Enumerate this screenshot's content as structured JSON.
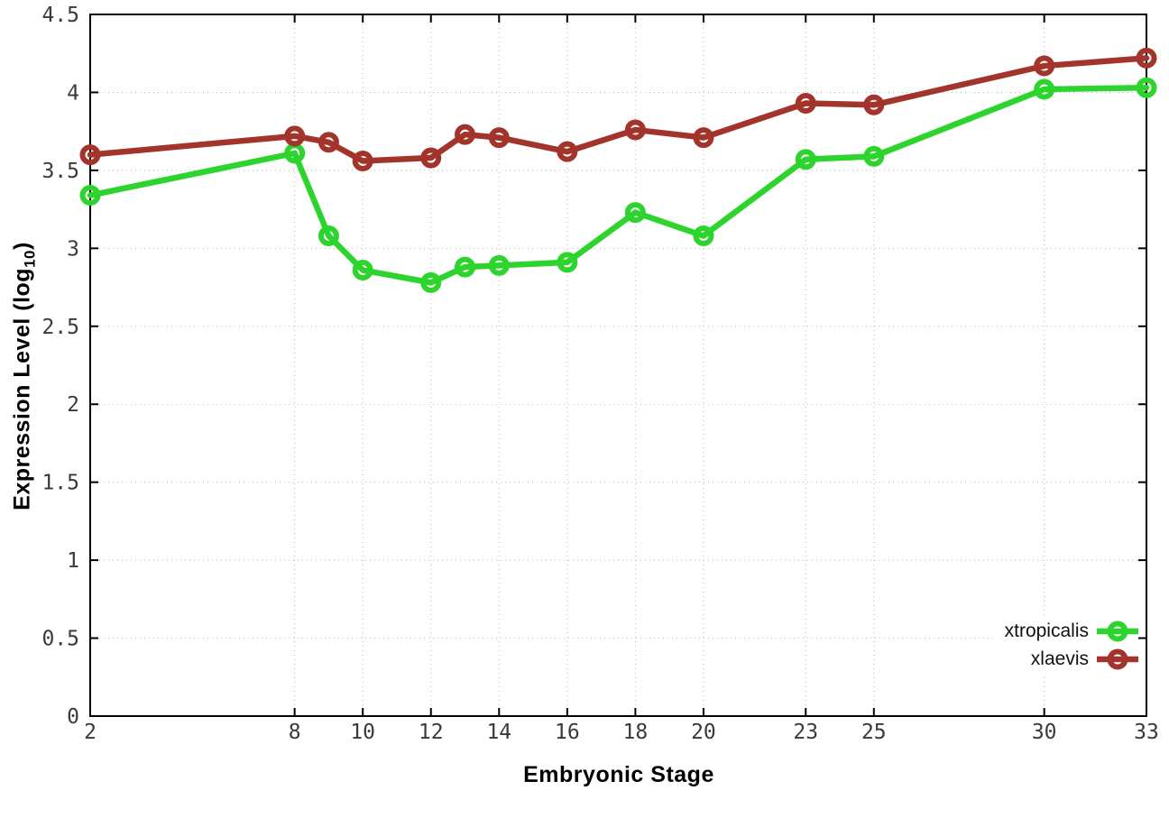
{
  "figure": {
    "background": "#ffffff"
  },
  "chart_data": {
    "type": "line",
    "title": "",
    "xlabel": "Embryonic Stage",
    "ylabel": "Expression Level (log10)",
    "ylabel_parts": {
      "main": "Expression Level (log",
      "sub": "10",
      "close": ")"
    },
    "xlim": [
      2,
      33
    ],
    "ylim": [
      0,
      4.5
    ],
    "grid": true,
    "legend_position": "bottom-right",
    "x": [
      2,
      8,
      9,
      10,
      12,
      13,
      14,
      16,
      18,
      20,
      23,
      25,
      30,
      33
    ],
    "xticks": {
      "values": [
        2,
        8,
        10,
        12,
        14,
        16,
        18,
        20,
        23,
        25,
        30,
        33
      ],
      "labels": [
        "2",
        "8",
        "10",
        "12",
        "14",
        "16",
        "18",
        "20",
        "23",
        "25",
        "30",
        "33"
      ]
    },
    "yticks": {
      "values": [
        0,
        0.5,
        1,
        1.5,
        2,
        2.5,
        3,
        3.5,
        4,
        4.5
      ],
      "labels": [
        "0",
        "0.5",
        "1",
        "1.5",
        "2",
        "2.5",
        "3",
        "3.5",
        "4",
        "4.5"
      ]
    },
    "series": [
      {
        "name": "xtropicalis",
        "color": "#2dd42d",
        "values": [
          3.34,
          3.61,
          3.08,
          2.86,
          2.78,
          2.88,
          2.89,
          2.91,
          3.23,
          3.08,
          3.57,
          3.59,
          4.02,
          4.03
        ]
      },
      {
        "name": "xlaevis",
        "color": "#a2342b",
        "values": [
          3.6,
          3.72,
          3.68,
          3.56,
          3.58,
          3.73,
          3.71,
          3.62,
          3.76,
          3.71,
          3.93,
          3.92,
          4.17,
          4.22
        ]
      }
    ],
    "colors": {
      "grid": "#b9b9b9",
      "axis": "#000000",
      "tick_text": "#3a3a3a"
    }
  }
}
